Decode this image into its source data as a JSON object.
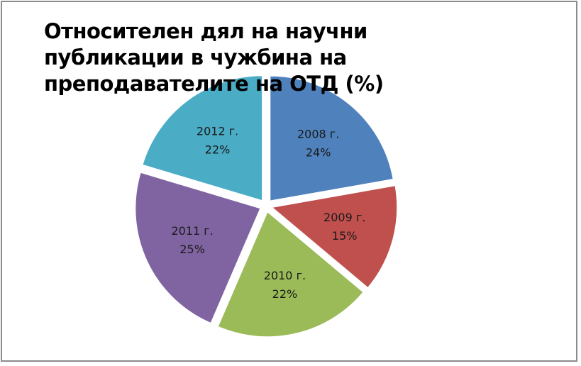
{
  "chart_data": {
    "type": "pie",
    "title": "Относителен дял на научни публикации в чужбина на преподавателите на ОТД (%)",
    "categories": [
      "2008 г.",
      "2009 г.",
      "2010 г.",
      "2011 г.",
      "2012 г."
    ],
    "values": [
      24,
      15,
      22,
      25,
      22
    ],
    "value_labels": [
      "24%",
      "15%",
      "22%",
      "25%",
      "22%"
    ],
    "colors": [
      "#4f81bd",
      "#c0504d",
      "#9bbb59",
      "#8064a2",
      "#4bacc6"
    ]
  }
}
